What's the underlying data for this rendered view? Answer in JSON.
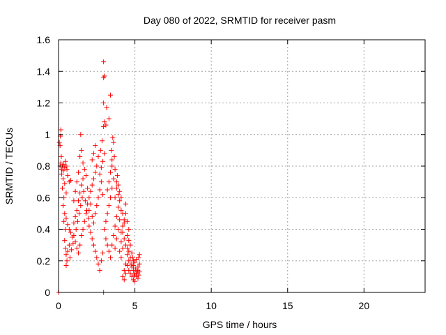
{
  "chart_data": {
    "type": "scatter",
    "title": "Day 080 of 2022, SRMTID for receiver pasm",
    "xlabel": "GPS time / hours",
    "ylabel": "SRMTID / TECUs",
    "xlim": [
      0,
      24
    ],
    "ylim": [
      0,
      1.6
    ],
    "xticks": [
      "0",
      "5",
      "10",
      "15",
      "20"
    ],
    "yticks": [
      "0",
      "0.2",
      "0.4",
      "0.6",
      "0.8",
      "1",
      "1.2",
      "1.4",
      "1.6"
    ],
    "grid": true,
    "color": "#ff0000",
    "marker": "+",
    "series": [
      {
        "points": [
          [
            0.02,
            0.0
          ],
          [
            2.95,
            0.0
          ],
          [
            0.05,
            0.95
          ],
          [
            0.1,
            0.93
          ],
          [
            0.15,
            1.03
          ],
          [
            0.12,
            0.99
          ],
          [
            0.18,
            0.86
          ],
          [
            0.1,
            0.8
          ],
          [
            0.15,
            0.82
          ],
          [
            0.2,
            0.78
          ],
          [
            0.25,
            0.8
          ],
          [
            0.3,
            0.77
          ],
          [
            0.35,
            0.81
          ],
          [
            0.4,
            0.79
          ],
          [
            0.45,
            0.83
          ],
          [
            0.5,
            0.8
          ],
          [
            0.55,
            0.78
          ],
          [
            0.2,
            0.75
          ],
          [
            0.3,
            0.72
          ],
          [
            0.4,
            0.69
          ],
          [
            0.5,
            0.63
          ],
          [
            0.6,
            0.74
          ],
          [
            0.7,
            0.7
          ],
          [
            0.8,
            0.71
          ],
          [
            0.25,
            0.66
          ],
          [
            0.35,
            0.6
          ],
          [
            0.3,
            0.55
          ],
          [
            0.4,
            0.5
          ],
          [
            0.5,
            0.47
          ],
          [
            0.6,
            0.43
          ],
          [
            0.7,
            0.4
          ],
          [
            0.8,
            0.38
          ],
          [
            0.9,
            0.35
          ],
          [
            0.35,
            0.45
          ],
          [
            0.45,
            0.4
          ],
          [
            0.4,
            0.33
          ],
          [
            0.45,
            0.28
          ],
          [
            0.5,
            0.24
          ],
          [
            0.55,
            0.2
          ],
          [
            0.5,
            0.17
          ],
          [
            0.6,
            0.26
          ],
          [
            0.7,
            0.3
          ],
          [
            0.75,
            0.22
          ],
          [
            0.85,
            0.27
          ],
          [
            0.95,
            0.31
          ],
          [
            1.0,
            0.44
          ],
          [
            1.1,
            0.48
          ],
          [
            1.2,
            0.52
          ],
          [
            1.3,
            0.58
          ],
          [
            1.4,
            0.63
          ],
          [
            1.5,
            0.68
          ],
          [
            1.6,
            0.72
          ],
          [
            1.7,
            0.78
          ],
          [
            1.8,
            0.74
          ],
          [
            1.9,
            0.66
          ],
          [
            1.0,
            0.36
          ],
          [
            1.1,
            0.32
          ],
          [
            1.2,
            0.28
          ],
          [
            1.3,
            0.25
          ],
          [
            1.4,
            0.3
          ],
          [
            1.5,
            0.36
          ],
          [
            1.6,
            0.4
          ],
          [
            1.7,
            0.45
          ],
          [
            1.8,
            0.5
          ],
          [
            1.9,
            0.56
          ],
          [
            1.15,
            0.4
          ],
          [
            1.25,
            0.45
          ],
          [
            1.35,
            0.5
          ],
          [
            1.45,
            0.55
          ],
          [
            1.55,
            0.6
          ],
          [
            1.65,
            0.64
          ],
          [
            1.75,
            0.58
          ],
          [
            1.85,
            0.52
          ],
          [
            1.95,
            0.47
          ],
          [
            1.4,
            0.86
          ],
          [
            1.5,
            0.9
          ],
          [
            1.45,
            1.0
          ],
          [
            1.6,
            0.82
          ],
          [
            1.3,
            0.76
          ],
          [
            1.2,
            0.7
          ],
          [
            1.1,
            0.64
          ],
          [
            1.0,
            0.58
          ],
          [
            2.0,
            0.6
          ],
          [
            2.1,
            0.64
          ],
          [
            2.2,
            0.68
          ],
          [
            2.3,
            0.72
          ],
          [
            2.4,
            0.76
          ],
          [
            2.5,
            0.8
          ],
          [
            2.2,
            0.84
          ],
          [
            2.3,
            0.88
          ],
          [
            2.4,
            0.93
          ],
          [
            2.6,
            0.86
          ],
          [
            2.0,
            0.42
          ],
          [
            2.1,
            0.38
          ],
          [
            2.2,
            0.34
          ],
          [
            2.3,
            0.3
          ],
          [
            2.4,
            0.26
          ],
          [
            2.5,
            0.22
          ],
          [
            2.6,
            0.18
          ],
          [
            2.7,
            0.14
          ],
          [
            2.8,
            0.2
          ],
          [
            2.9,
            0.25
          ],
          [
            2.0,
            0.52
          ],
          [
            2.1,
            0.56
          ],
          [
            2.2,
            0.48
          ],
          [
            2.3,
            0.44
          ],
          [
            2.4,
            0.5
          ],
          [
            2.5,
            0.55
          ],
          [
            2.6,
            0.6
          ],
          [
            2.7,
            0.65
          ],
          [
            2.8,
            0.7
          ],
          [
            2.9,
            0.62
          ],
          [
            2.7,
            0.75
          ],
          [
            2.8,
            0.79
          ],
          [
            2.9,
            0.83
          ],
          [
            3.0,
            0.88
          ],
          [
            2.75,
            0.9
          ],
          [
            2.85,
            0.96
          ],
          [
            2.95,
            1.05
          ],
          [
            3.0,
            1.08
          ],
          [
            3.1,
            1.06
          ],
          [
            2.95,
            1.2
          ],
          [
            2.95,
            1.36
          ],
          [
            3.0,
            1.37
          ],
          [
            2.95,
            1.46
          ],
          [
            3.15,
            1.17
          ],
          [
            3.4,
            1.25
          ],
          [
            3.3,
            1.1
          ],
          [
            3.0,
            0.4
          ],
          [
            3.1,
            0.45
          ],
          [
            3.2,
            0.5
          ],
          [
            3.3,
            0.55
          ],
          [
            3.4,
            0.6
          ],
          [
            3.5,
            0.66
          ],
          [
            3.6,
            0.72
          ],
          [
            3.7,
            0.78
          ],
          [
            3.5,
            0.84
          ],
          [
            3.6,
            0.95
          ],
          [
            3.1,
            0.34
          ],
          [
            3.2,
            0.3
          ],
          [
            3.3,
            0.26
          ],
          [
            3.4,
            0.22
          ],
          [
            3.5,
            0.3
          ],
          [
            3.6,
            0.36
          ],
          [
            3.7,
            0.42
          ],
          [
            3.8,
            0.48
          ],
          [
            3.9,
            0.54
          ],
          [
            3.2,
            0.65
          ],
          [
            3.3,
            0.7
          ],
          [
            3.4,
            0.76
          ],
          [
            3.5,
            0.8
          ],
          [
            3.45,
            0.9
          ],
          [
            3.55,
            0.98
          ],
          [
            3.65,
            0.86
          ],
          [
            3.7,
            0.6
          ],
          [
            3.8,
            0.66
          ],
          [
            3.9,
            0.62
          ],
          [
            4.0,
            0.58
          ],
          [
            4.1,
            0.52
          ],
          [
            4.0,
            0.46
          ],
          [
            3.9,
            0.4
          ],
          [
            3.8,
            0.34
          ],
          [
            3.7,
            0.28
          ],
          [
            3.8,
            0.7
          ],
          [
            3.85,
            0.74
          ],
          [
            3.9,
            0.68
          ],
          [
            4.0,
            0.64
          ],
          [
            4.1,
            0.6
          ],
          [
            4.2,
            0.5
          ],
          [
            4.3,
            0.44
          ],
          [
            4.2,
            0.38
          ],
          [
            4.1,
            0.32
          ],
          [
            4.0,
            0.26
          ],
          [
            4.1,
            0.22
          ],
          [
            4.2,
            0.28
          ],
          [
            4.3,
            0.34
          ],
          [
            4.4,
            0.3
          ],
          [
            4.5,
            0.24
          ],
          [
            4.6,
            0.2
          ],
          [
            4.4,
            0.18
          ],
          [
            4.3,
            0.14
          ],
          [
            4.2,
            0.1
          ],
          [
            4.3,
            0.08
          ],
          [
            4.4,
            0.12
          ],
          [
            4.5,
            0.36
          ],
          [
            4.6,
            0.4
          ],
          [
            4.5,
            0.45
          ],
          [
            4.4,
            0.56
          ],
          [
            4.6,
            0.33
          ],
          [
            4.7,
            0.3
          ],
          [
            4.1,
            0.38
          ],
          [
            4.2,
            0.42
          ],
          [
            4.3,
            0.46
          ],
          [
            4.4,
            0.5
          ],
          [
            4.5,
            0.28
          ],
          [
            4.6,
            0.26
          ],
          [
            4.7,
            0.22
          ],
          [
            4.8,
            0.25
          ],
          [
            4.9,
            0.2
          ],
          [
            4.5,
            0.17
          ],
          [
            4.6,
            0.14
          ],
          [
            4.7,
            0.12
          ],
          [
            4.8,
            0.16
          ],
          [
            4.9,
            0.14
          ],
          [
            5.0,
            0.12
          ],
          [
            5.1,
            0.1
          ],
          [
            5.2,
            0.14
          ],
          [
            5.3,
            0.18
          ],
          [
            4.8,
            0.1
          ],
          [
            4.9,
            0.08
          ],
          [
            5.0,
            0.07
          ],
          [
            5.1,
            0.12
          ],
          [
            5.2,
            0.16
          ],
          [
            5.25,
            0.22
          ],
          [
            5.3,
            0.24
          ],
          [
            4.75,
            0.18
          ],
          [
            4.85,
            0.22
          ],
          [
            4.95,
            0.11
          ],
          [
            5.05,
            0.15
          ],
          [
            5.15,
            0.13
          ],
          [
            5.25,
            0.11
          ],
          [
            4.9,
            0.17
          ],
          [
            5.0,
            0.19
          ],
          [
            5.1,
            0.21
          ],
          [
            5.2,
            0.09
          ],
          [
            5.3,
            0.13
          ]
        ]
      }
    ]
  }
}
